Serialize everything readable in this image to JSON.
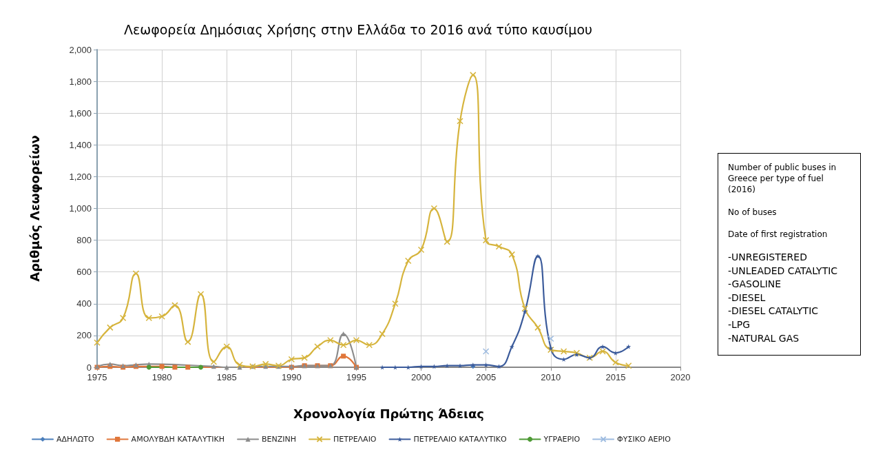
{
  "chart_data": {
    "type": "line",
    "title": "Λεωφορεία Δημόσιας Χρήσης στην Ελλάδα το 2016 ανά τύπο καυσίμου",
    "xlabel": "Χρονολογία Πρώτης Άδειας",
    "ylabel": "Αριθμός Λεωφορείων",
    "xlim": [
      1975,
      2020
    ],
    "xticks": [
      1975,
      1980,
      1985,
      1990,
      1995,
      2000,
      2005,
      2010,
      2015,
      2020
    ],
    "ylim": [
      0,
      2000
    ],
    "yticks": [
      0,
      200,
      400,
      600,
      800,
      {
        "value": 1000,
        "label": "1,000"
      },
      {
        "value": 1200,
        "label": "1,200"
      },
      {
        "value": 1400,
        "label": "1,400"
      },
      {
        "value": 1600,
        "label": "1,600"
      },
      {
        "value": 1800,
        "label": "1,800"
      },
      {
        "value": 2000,
        "label": "2,000"
      }
    ],
    "grid": true,
    "legend": "bottom",
    "annotations": [
      "Number of public buses in Greece per type of fuel (2016)",
      "No of buses",
      "Date of first registration",
      "-UNREGISTERED",
      "-UNLEADED CATALYTIC",
      "-GASOLINE",
      "-DIESEL",
      "-DIESEL CATALYTIC",
      "-LPG",
      "-NATURAL GAS"
    ],
    "series": [
      {
        "name": "ΑΔΗΛΩΤΟ",
        "color": "#4a7ebb",
        "marker": "diamond",
        "x": [
          2004
        ],
        "values": [
          5
        ]
      },
      {
        "name": "ΑΜΟΛΥΒΔΗ ΚΑΤΑΛΥΤΙΚΗ",
        "color": "#e0763a",
        "marker": "square",
        "x": [
          1975,
          1976,
          1977,
          1978,
          1980,
          1981,
          1982,
          1990,
          1991,
          1992,
          1993,
          1994,
          1995
        ],
        "values": [
          0,
          5,
          0,
          5,
          5,
          0,
          0,
          0,
          10,
          10,
          10,
          70,
          0
        ]
      },
      {
        "name": "ΒΕΝΖΙΝΗ",
        "color": "#8c8c8c",
        "marker": "triangle",
        "x": [
          1975,
          1976,
          1977,
          1978,
          1979,
          1984,
          1985,
          1986,
          1987,
          1988,
          1989,
          1990,
          1991,
          1992,
          1993,
          1994,
          1995
        ],
        "values": [
          5,
          20,
          10,
          15,
          20,
          5,
          0,
          0,
          5,
          5,
          5,
          5,
          10,
          10,
          10,
          210,
          0
        ]
      },
      {
        "name": "ΠΕΤΡΕΛΑΙΟ",
        "color": "#d6b43c",
        "marker": "cross",
        "x": [
          1975,
          1976,
          1977,
          1978,
          1979,
          1980,
          1981,
          1982,
          1983,
          1984,
          1985,
          1986,
          1987,
          1988,
          1989,
          1990,
          1991,
          1992,
          1993,
          1994,
          1995,
          1996,
          1997,
          1998,
          1999,
          2000,
          2001,
          2002,
          2003,
          2004,
          2005,
          2006,
          2007,
          2008,
          2009,
          2010,
          2011,
          2012,
          2013,
          2014,
          2015,
          2016
        ],
        "values": [
          155,
          250,
          310,
          590,
          310,
          320,
          390,
          160,
          460,
          35,
          130,
          15,
          5,
          20,
          10,
          50,
          60,
          130,
          170,
          140,
          170,
          140,
          210,
          400,
          670,
          740,
          1000,
          790,
          1550,
          1840,
          800,
          760,
          710,
          370,
          250,
          110,
          100,
          90,
          60,
          100,
          30,
          10
        ]
      },
      {
        "name": "ΠΕΤΡΕΛΑΙΟ ΚΑΤΑΛΥΤΙΚΟ",
        "color": "#3b5b9b",
        "marker": "star",
        "x": [
          1997,
          1998,
          1999,
          2000,
          2001,
          2002,
          2003,
          2004,
          2005,
          2006,
          2007,
          2008,
          2009,
          2010,
          2011,
          2012,
          2013,
          2014,
          2015,
          2016
        ],
        "values": [
          0,
          0,
          0,
          5,
          5,
          10,
          10,
          15,
          15,
          5,
          130,
          350,
          700,
          120,
          50,
          80,
          60,
          130,
          90,
          130
        ]
      },
      {
        "name": "ΥΓΡΑΕΡΙΟ",
        "color": "#4e9a36",
        "marker": "circle",
        "x": [
          1979,
          1983
        ],
        "values": [
          0,
          0
        ]
      },
      {
        "name": "ΦΥΣΙΚΟ ΑΕΡΙΟ",
        "color": "#9dbbe0",
        "marker": "cross",
        "x": [
          2005,
          2006,
          2007,
          2008,
          2009,
          2010
        ],
        "values": [
          100,
          null,
          null,
          null,
          null,
          180
        ]
      }
    ]
  }
}
